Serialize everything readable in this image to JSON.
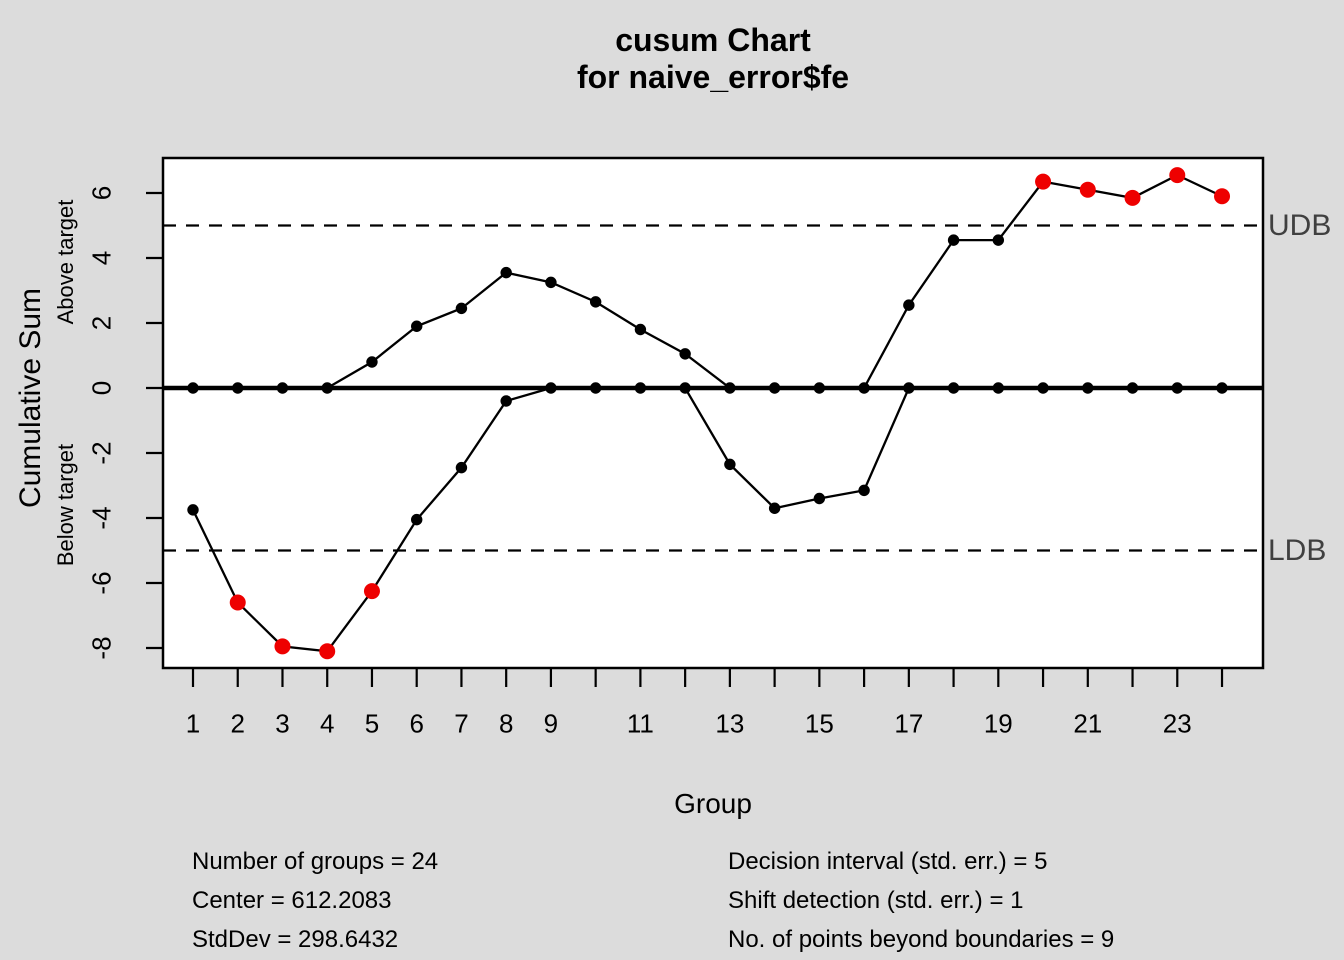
{
  "figure": {
    "background": "#dcdcdc"
  },
  "chart_data": {
    "type": "line",
    "title": "cusum Chart",
    "subtitle": "for naive_error$fe",
    "xlabel": "Group",
    "ylabel": "Cumulative Sum",
    "upper_region_label": "Above target",
    "lower_region_label": "Below target",
    "groups": [
      1,
      2,
      3,
      4,
      5,
      6,
      7,
      8,
      9,
      10,
      11,
      12,
      13,
      14,
      15,
      16,
      17,
      18,
      19,
      20,
      21,
      22,
      23,
      24
    ],
    "x_tick_labels": [
      "1",
      "2",
      "3",
      "4",
      "5",
      "6",
      "7",
      "8",
      "9",
      "",
      "11",
      "",
      "13",
      "",
      "15",
      "",
      "17",
      "",
      "19",
      "",
      "21",
      "",
      "23",
      ""
    ],
    "y_ticks": [
      6,
      4,
      2,
      0,
      -2,
      -4,
      -6,
      -8
    ],
    "ylim": [
      -8.7,
      7.08
    ],
    "grid": false,
    "legend_position": "none",
    "center_line_value": 0,
    "boundaries": {
      "udb": {
        "value": 5,
        "label": "UDB"
      },
      "ldb": {
        "value": -5,
        "label": "LDB"
      }
    },
    "series": [
      {
        "name": "above-target-cusum",
        "values": [
          0,
          0,
          0,
          0,
          0.8,
          1.9,
          2.45,
          3.55,
          3.25,
          2.65,
          1.8,
          1.05,
          0,
          0,
          0,
          0,
          2.55,
          4.55,
          4.55,
          6.35,
          6.1,
          5.85,
          6.55,
          5.9
        ],
        "beyond_boundaries_groups": [
          20,
          21,
          22,
          23,
          24
        ]
      },
      {
        "name": "below-target-cusum",
        "values": [
          -3.75,
          -6.6,
          -7.95,
          -8.1,
          -6.25,
          -4.05,
          -2.45,
          -0.4,
          0,
          0,
          0,
          0,
          -2.35,
          -3.7,
          -3.4,
          -3.15,
          0,
          0,
          0,
          0,
          0,
          0,
          0,
          0
        ],
        "beyond_boundaries_groups": [
          2,
          3,
          4,
          5
        ]
      }
    ],
    "colors": {
      "point": "#000000",
      "line": "#000000",
      "beyond_point": "#ee0000",
      "boundary_label": "#404040",
      "plot_background": "#ffffff"
    }
  },
  "stats": {
    "left": [
      "Number of groups = 24",
      "Center = 612.2083",
      "StdDev = 298.6432"
    ],
    "right": [
      "Decision interval (std. err.) = 5",
      "Shift detection (std. err.) = 1",
      "No. of points beyond boundaries = 9"
    ]
  }
}
